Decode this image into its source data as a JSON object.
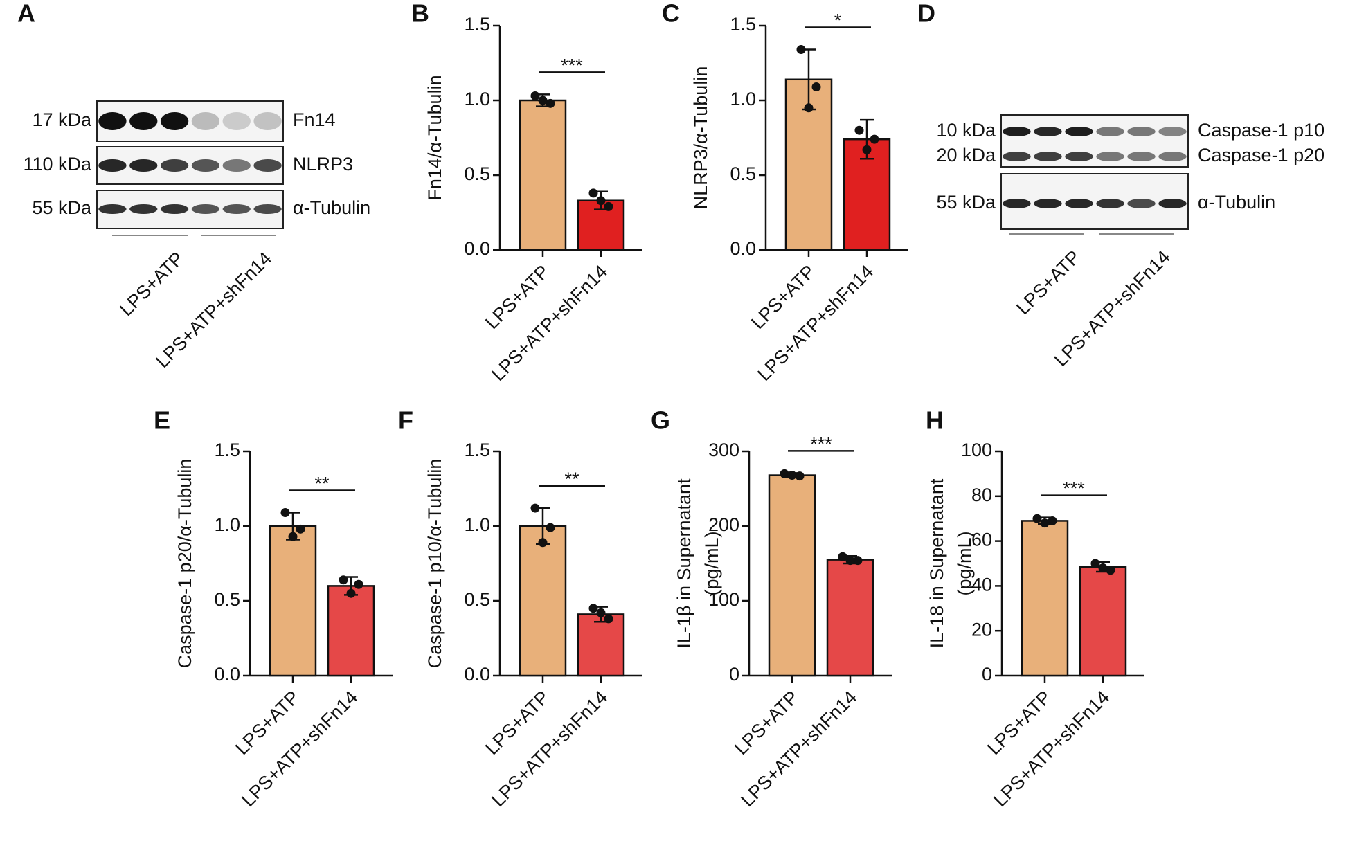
{
  "chart_data": [
    {
      "type": "bar",
      "letter": "B",
      "ylabel": [
        "Fn14/α-Tubulin"
      ],
      "categories": [
        "LPS+ATP",
        "LPS+ATP+shFn14"
      ],
      "values": [
        1.0,
        0.33
      ],
      "errors": [
        0.04,
        0.06
      ],
      "points": [
        [
          1.03,
          0.98,
          1.0
        ],
        [
          0.38,
          0.29,
          0.33
        ]
      ],
      "colors": [
        "#e8b07a",
        "#e02020"
      ],
      "significance": "***",
      "ylim": [
        0,
        1.5
      ],
      "yticks": [
        {
          "value": 0,
          "label": "0.0"
        },
        {
          "value": 0.5,
          "label": "0.5"
        },
        {
          "value": 1,
          "label": "1.0"
        },
        {
          "value": 1.5,
          "label": "1.5"
        }
      ]
    },
    {
      "type": "bar",
      "letter": "C",
      "ylabel": [
        "NLRP3/α-Tubulin"
      ],
      "categories": [
        "LPS+ATP",
        "LPS+ATP+shFn14"
      ],
      "values": [
        1.14,
        0.74
      ],
      "errors": [
        0.2,
        0.13
      ],
      "points": [
        [
          1.34,
          1.09,
          0.95
        ],
        [
          0.8,
          0.74,
          0.67
        ]
      ],
      "colors": [
        "#e8b07a",
        "#e02020"
      ],
      "significance": "*",
      "ylim": [
        0,
        1.5
      ],
      "yticks": [
        {
          "value": 0,
          "label": "0.0"
        },
        {
          "value": 0.5,
          "label": "0.5"
        },
        {
          "value": 1,
          "label": "1.0"
        },
        {
          "value": 1.5,
          "label": "1.5"
        }
      ]
    },
    {
      "type": "bar",
      "letter": "E",
      "ylabel": [
        "Caspase-1 p20/α-Tubulin"
      ],
      "categories": [
        "LPS+ATP",
        "LPS+ATP+shFn14"
      ],
      "values": [
        1.0,
        0.6
      ],
      "errors": [
        0.09,
        0.06
      ],
      "points": [
        [
          1.09,
          0.98,
          0.93
        ],
        [
          0.64,
          0.61,
          0.55
        ]
      ],
      "colors": [
        "#e8b07a",
        "#e54848"
      ],
      "significance": "**",
      "ylim": [
        0,
        1.5
      ],
      "yticks": [
        {
          "value": 0,
          "label": "0.0"
        },
        {
          "value": 0.5,
          "label": "0.5"
        },
        {
          "value": 1,
          "label": "1.0"
        },
        {
          "value": 1.5,
          "label": "1.5"
        }
      ]
    },
    {
      "type": "bar",
      "letter": "F",
      "ylabel": [
        "Caspase-1 p10/α-Tubulin"
      ],
      "categories": [
        "LPS+ATP",
        "LPS+ATP+shFn14"
      ],
      "values": [
        1.0,
        0.41
      ],
      "errors": [
        0.12,
        0.05
      ],
      "points": [
        [
          1.12,
          0.99,
          0.89
        ],
        [
          0.45,
          0.38,
          0.42
        ]
      ],
      "colors": [
        "#e8b07a",
        "#e54848"
      ],
      "significance": "**",
      "ylim": [
        0,
        1.5
      ],
      "yticks": [
        {
          "value": 0,
          "label": "0.0"
        },
        {
          "value": 0.5,
          "label": "0.5"
        },
        {
          "value": 1,
          "label": "1.0"
        },
        {
          "value": 1.5,
          "label": "1.5"
        }
      ]
    },
    {
      "type": "bar",
      "letter": "G",
      "ylabel": [
        "IL-1β in Supernatant",
        "(pg/mL)"
      ],
      "categories": [
        "LPS+ATP",
        "LPS+ATP+shFn14"
      ],
      "values": [
        268,
        155
      ],
      "errors": [
        3,
        5
      ],
      "points": [
        [
          270,
          267,
          268
        ],
        [
          159,
          154,
          154
        ]
      ],
      "colors": [
        "#e8b07a",
        "#e54848"
      ],
      "significance": "***",
      "ylim": [
        0,
        300
      ],
      "yticks": [
        0,
        100,
        200,
        300
      ]
    },
    {
      "type": "bar",
      "letter": "H",
      "ylabel": [
        "IL-18 in Supernatant",
        "(pg/mL)"
      ],
      "categories": [
        "LPS+ATP",
        "LPS+ATP+shFn14"
      ],
      "values": [
        69,
        48.5
      ],
      "errors": [
        1.5,
        2.2
      ],
      "points": [
        [
          70,
          69,
          68
        ],
        [
          50,
          47,
          48
        ]
      ],
      "colors": [
        "#e8b07a",
        "#e54848"
      ],
      "significance": "***",
      "ylim": [
        0,
        100
      ],
      "yticks": [
        0,
        20,
        40,
        60,
        80,
        100
      ]
    }
  ],
  "blots": [
    {
      "letter": "A",
      "rows": [
        {
          "size": "17 kDa",
          "name": "Fn14"
        },
        {
          "size": "110 kDa",
          "name": "NLRP3"
        },
        {
          "size": "55 kDa",
          "name": "α-Tubulin"
        }
      ],
      "groups": [
        "LPS+ATP",
        "LPS+ATP+shFn14"
      ]
    },
    {
      "letter": "D",
      "rows": [
        {
          "size": "10 kDa",
          "name": "Caspase-1 p10"
        },
        {
          "size": "20 kDa",
          "name": "Caspase-1 p20"
        },
        {
          "size": "55 kDa",
          "name": "α-Tubulin"
        }
      ],
      "groups": [
        "LPS+ATP",
        "LPS+ATP+shFn14"
      ]
    }
  ]
}
